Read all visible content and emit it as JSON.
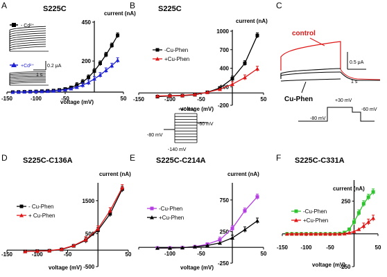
{
  "colors": {
    "black": "#000000",
    "blue": "#1f22d4",
    "red": "#e01616",
    "purple": "#b43ee0",
    "green": "#2fc42f"
  },
  "chart_data": [
    {
      "id": "A",
      "panel_label": "A",
      "type": "line",
      "title": "S225C",
      "ylabel": "current (nA)",
      "xlabel": "voltage (mV)",
      "xlim": [
        -150,
        50
      ],
      "ylim": [
        0,
        450
      ],
      "xticks": [
        "-150",
        "-100",
        "-50",
        "50"
      ],
      "yticks": [
        "450",
        "200"
      ],
      "series": [
        {
          "name": "- Cd²⁺",
          "color": "#000000",
          "marker": "square",
          "x": [
            -140,
            -130,
            -120,
            -110,
            -100,
            -90,
            -80,
            -70,
            -60,
            -50,
            -40,
            -30,
            -20,
            -10,
            0,
            10,
            20,
            30,
            40
          ],
          "y": [
            0,
            1,
            2,
            3,
            4,
            6,
            8,
            10,
            14,
            20,
            30,
            45,
            65,
            95,
            135,
            185,
            240,
            300,
            365
          ]
        },
        {
          "name": "+Cd²⁺",
          "color": "#1f22d4",
          "marker": "triangle",
          "x": [
            -140,
            -130,
            -120,
            -110,
            -100,
            -90,
            -80,
            -70,
            -60,
            -50,
            -40,
            -30,
            -20,
            -10,
            0,
            10,
            20,
            30,
            40
          ],
          "y": [
            0,
            1,
            2,
            3,
            4,
            5,
            6,
            8,
            11,
            15,
            22,
            32,
            45,
            62,
            85,
            110,
            140,
            170,
            205
          ]
        }
      ],
      "inset": {
        "legend_top": "- Cd²⁺",
        "legend_bottom": "+Cd²⁺",
        "scale_current": "0.2 μA",
        "scale_time": "1 s"
      }
    },
    {
      "id": "B",
      "panel_label": "B",
      "type": "line",
      "title": "S225C",
      "ylabel": "current (nA)",
      "xlabel": "voltage (mV)",
      "xlim": [
        -150,
        50
      ],
      "ylim": [
        -200,
        1000
      ],
      "xticks": [
        "-150",
        "-100",
        "-50",
        "50"
      ],
      "yticks": [
        "1000",
        "700",
        "400",
        "100",
        "-200"
      ],
      "series": [
        {
          "name": "-Cu-Phen",
          "color": "#000000",
          "marker": "square",
          "x": [
            -120,
            -100,
            -80,
            -60,
            -40,
            -20,
            0,
            20,
            40
          ],
          "y": [
            -60,
            -50,
            -45,
            -30,
            10,
            80,
            230,
            480,
            930
          ]
        },
        {
          "name": "+Cu-Phen",
          "color": "#e01616",
          "marker": "triangle",
          "x": [
            -120,
            -100,
            -80,
            -60,
            -40,
            -20,
            0,
            20,
            40
          ],
          "y": [
            -50,
            -45,
            -40,
            -25,
            10,
            60,
            140,
            250,
            390
          ]
        }
      ],
      "protocol": {
        "v_top": "+40 mV",
        "v_hold": "-80 mV",
        "v_tail": "-60 mV",
        "v_bottom": "-140 mV"
      }
    },
    {
      "id": "D",
      "panel_label": "D",
      "type": "line",
      "title": "S225C-C136A",
      "ylabel": "current (nA)",
      "xlabel": "voltage (mV)",
      "xlim": [
        -150,
        50
      ],
      "ylim": [
        -500,
        2000
      ],
      "xticks": [
        "-150",
        "-100",
        "-50",
        "50"
      ],
      "yticks": [
        "1500",
        "500",
        "-500"
      ],
      "series": [
        {
          "name": "- Cu-Phen",
          "color": "#000000",
          "marker": "square",
          "x": [
            -120,
            -100,
            -80,
            -60,
            -40,
            -20,
            0,
            20,
            40
          ],
          "y": [
            -40,
            -30,
            -20,
            20,
            130,
            300,
            600,
            1100,
            1850
          ]
        },
        {
          "name": "+ Cu-Phen",
          "color": "#e01616",
          "marker": "triangle",
          "x": [
            -120,
            -100,
            -80,
            -60,
            -40,
            -20,
            0,
            20,
            40
          ],
          "y": [
            -40,
            -30,
            -15,
            30,
            140,
            320,
            650,
            1200,
            1900
          ]
        }
      ]
    },
    {
      "id": "E",
      "panel_label": "E",
      "type": "line",
      "title": "S225C-C214A",
      "ylabel": "current (nA)",
      "xlabel": "voltage (mV)",
      "xlim": [
        -150,
        50
      ],
      "ylim": [
        -250,
        1000
      ],
      "xticks": [
        "-100",
        "-50",
        "50"
      ],
      "yticks": [
        "750",
        "250",
        "-250"
      ],
      "series": [
        {
          "name": "-Cu-Phen",
          "color": "#b43ee0",
          "marker": "square",
          "x": [
            -120,
            -100,
            -80,
            -60,
            -40,
            -20,
            0,
            20,
            40
          ],
          "y": [
            -10,
            -10,
            -5,
            10,
            50,
            120,
            300,
            580,
            800
          ]
        },
        {
          "name": "+Cu-Phen",
          "color": "#000000",
          "marker": "triangle",
          "x": [
            -120,
            -100,
            -80,
            -60,
            -40,
            -20,
            0,
            20,
            40
          ],
          "y": [
            -10,
            -10,
            -5,
            10,
            30,
            70,
            150,
            280,
            420
          ]
        }
      ]
    },
    {
      "id": "F",
      "panel_label": "F",
      "type": "line",
      "title": "S225C-C331A",
      "ylabel": "current (nA)",
      "xlabel": "voltage (mV)",
      "xlim": [
        -150,
        50
      ],
      "ylim": [
        -250,
        400
      ],
      "xticks": [
        "-150",
        "-100",
        "-50",
        "50"
      ],
      "yticks": [
        "250",
        "-250"
      ],
      "series": [
        {
          "name": "-Cu-Phen",
          "color": "#2fc42f",
          "marker": "square",
          "x": [
            -140,
            -130,
            -120,
            -110,
            -100,
            -90,
            -80,
            -70,
            -60,
            -50,
            -40,
            -30,
            -20,
            -10,
            0,
            10,
            20,
            30,
            40
          ],
          "y": [
            0,
            0,
            0,
            0,
            0,
            0,
            0,
            0,
            0,
            0,
            0,
            2,
            10,
            35,
            90,
            160,
            230,
            280,
            320
          ]
        },
        {
          "name": "+Cu-Phen",
          "color": "#e01616",
          "marker": "triangle",
          "x": [
            -140,
            -130,
            -120,
            -110,
            -100,
            -90,
            -80,
            -70,
            -60,
            -50,
            -40,
            -30,
            -20,
            -10,
            0,
            10,
            20,
            30,
            40
          ],
          "y": [
            0,
            0,
            0,
            0,
            0,
            0,
            0,
            0,
            0,
            0,
            0,
            0,
            2,
            8,
            18,
            35,
            60,
            90,
            120
          ]
        }
      ]
    }
  ],
  "panel_c": {
    "panel_label": "C",
    "control_label": "control",
    "cuphen_label": "Cu-Phen",
    "scale_current": "0.5 μA",
    "scale_time": "1 s",
    "v_top": "+30 mV",
    "v_hold": "-80 mV",
    "v_tail": "-60 mV"
  }
}
